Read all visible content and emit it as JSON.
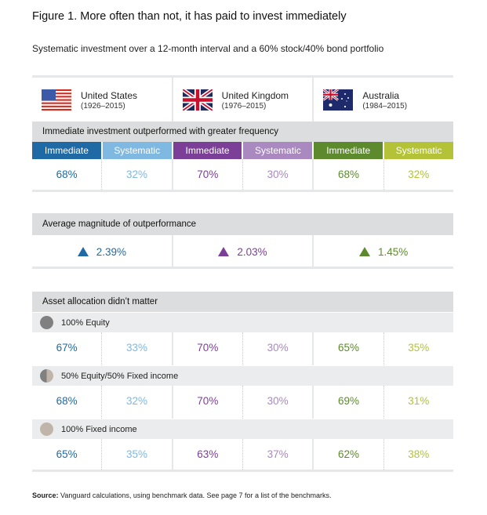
{
  "title": "Figure 1. More often than not, it has paid to invest immediately",
  "subtitle": "Systematic investment over a 12-month interval and a 60% stock/40% bond portfolio",
  "countries": [
    {
      "name": "United States",
      "years": "(1926–2015)",
      "flag": "us-flag-icon"
    },
    {
      "name": "United Kingdom",
      "years": "(1976–2015)",
      "flag": "uk-flag-icon"
    },
    {
      "name": "Australia",
      "years": "(1984–2015)",
      "flag": "australia-flag-icon"
    }
  ],
  "colors": {
    "us_imm": "#1f6aa5",
    "us_sys": "#7fb8e0",
    "uk_imm": "#7b3f98",
    "uk_sys": "#a989c0",
    "au_imm": "#5e8a2e",
    "au_sys": "#b3c236"
  },
  "section1": {
    "heading": "Immediate investment outperformed with greater frequency",
    "labels": [
      "Immediate",
      "Systematic",
      "Immediate",
      "Systematic",
      "Immediate",
      "Systematic"
    ],
    "values": [
      "68%",
      "32%",
      "70%",
      "30%",
      "68%",
      "32%"
    ]
  },
  "section2": {
    "heading": "Average magnitude of outperformance",
    "values": [
      "2.39%",
      "2.03%",
      "1.45%"
    ]
  },
  "section3": {
    "heading": "Asset allocation didn’t matter",
    "rows": [
      {
        "label": "100% Equity",
        "values": [
          "67%",
          "33%",
          "70%",
          "30%",
          "65%",
          "35%"
        ]
      },
      {
        "label": "50% Equity/50% Fixed income",
        "values": [
          "68%",
          "32%",
          "70%",
          "30%",
          "69%",
          "31%"
        ]
      },
      {
        "label": "100% Fixed income",
        "values": [
          "65%",
          "35%",
          "63%",
          "37%",
          "62%",
          "38%"
        ]
      }
    ]
  },
  "source": {
    "label": "Source:",
    "text": " Vanguard calculations, using benchmark data. See page 7 for a list of the benchmarks."
  }
}
